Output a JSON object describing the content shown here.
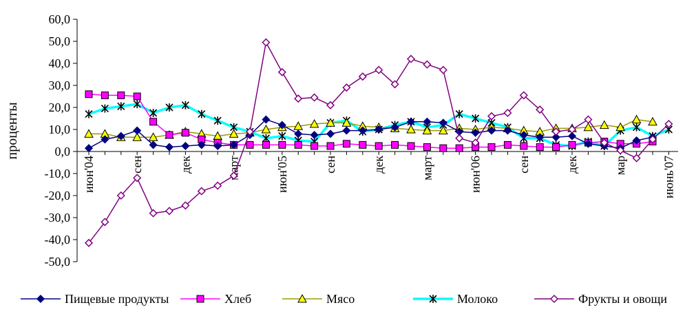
{
  "chart_data": {
    "type": "line",
    "ylabel": "проценты",
    "ylim": [
      -50,
      60
    ],
    "y_ticks": [
      "60,0",
      "50,0",
      "40,0",
      "30,0",
      "20,0",
      "10,0",
      "0,0",
      "-10,0",
      "-20,0",
      "-30,0",
      "-40,0",
      "-50,0"
    ],
    "x_tick_labels": [
      "июн'04",
      "сен",
      "дек",
      "март",
      "июн'05",
      "сен",
      "дек",
      "март",
      "июн'06",
      "сен",
      "дек",
      "мар",
      "июнь'07"
    ],
    "legend_position": "bottom",
    "grid": false,
    "series": [
      {
        "name": "Пищевые продукты",
        "color": "#000080",
        "marker": "diamond-filled",
        "values": [
          1.5,
          5.5,
          7.0,
          9.5,
          3.0,
          2.0,
          2.5,
          3.0,
          2.5,
          3.0,
          7.5,
          14.5,
          12.0,
          8.0,
          7.5,
          8.0,
          9.5,
          9.5,
          10.0,
          11.0,
          13.5,
          13.5,
          13.0,
          9.0,
          8.5,
          9.5,
          9.5,
          7.5,
          6.5,
          6.5,
          7.0,
          3.5,
          2.5,
          1.5,
          5.0,
          6.5
        ]
      },
      {
        "name": "Хлеб",
        "color": "#FF00FF",
        "marker": "square",
        "values": [
          26.0,
          25.5,
          25.5,
          25.0,
          13.5,
          7.5,
          8.5,
          5.5,
          4.0,
          3.0,
          3.0,
          3.0,
          3.0,
          3.0,
          2.5,
          2.5,
          3.5,
          3.0,
          2.5,
          3.0,
          2.5,
          2.0,
          1.5,
          1.5,
          2.0,
          2.0,
          3.0,
          2.5,
          2.0,
          2.0,
          3.0,
          4.0,
          4.5,
          3.5,
          3.5,
          4.5
        ]
      },
      {
        "name": "Мясо",
        "color": "#999900",
        "marker": "triangle",
        "values": [
          8.0,
          8.0,
          6.5,
          6.5,
          6.5,
          7.5,
          9.0,
          8.0,
          7.0,
          8.0,
          8.5,
          10.0,
          11.0,
          11.5,
          12.5,
          13.0,
          13.0,
          11.5,
          11.0,
          10.5,
          10.0,
          9.5,
          9.5,
          10.5,
          10.0,
          11.0,
          10.5,
          9.5,
          9.0,
          10.5,
          10.5,
          11.0,
          12.0,
          11.0,
          14.5,
          13.5
        ]
      },
      {
        "name": "Молоко",
        "color": "#00FFFF",
        "marker": "asterisk",
        "values": [
          17.0,
          19.5,
          20.5,
          21.5,
          17.5,
          20.0,
          21.0,
          17.0,
          14.0,
          11.0,
          9.0,
          6.0,
          7.0,
          5.0,
          4.5,
          13.0,
          14.0,
          9.0,
          10.0,
          12.0,
          13.5,
          11.0,
          12.0,
          17.0,
          15.0,
          13.0,
          11.0,
          6.0,
          6.0,
          3.0,
          2.5,
          4.5,
          2.5,
          9.5,
          11.0,
          7.0,
          10.0
        ]
      },
      {
        "name": "Фрукты и овощи",
        "color": "#800080",
        "marker": "diamond-open",
        "values": [
          -41.5,
          -32.0,
          -20.0,
          -12.0,
          -28.0,
          -27.0,
          -24.5,
          -18.0,
          -15.5,
          -11.0,
          9.0,
          49.5,
          36.0,
          24.0,
          24.5,
          21.0,
          29.0,
          34.0,
          37.0,
          30.5,
          42.0,
          39.5,
          37.0,
          6.0,
          4.0,
          16.0,
          17.5,
          25.5,
          19.0,
          9.0,
          10.0,
          14.5,
          4.0,
          0.5,
          -3.0,
          5.5,
          12.5
        ]
      }
    ]
  },
  "colors": {
    "axis": "#000000",
    "background": "#ffffff"
  }
}
